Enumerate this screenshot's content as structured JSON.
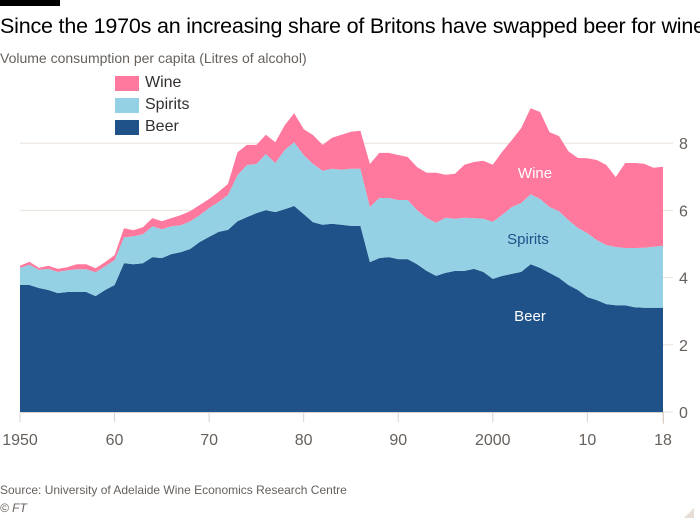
{
  "header": {
    "title": "Since the 1970s an increasing share of Britons have swapped beer for wine",
    "subtitle": "Volume consumption per capita (Litres of alcohol)"
  },
  "footer": {
    "source": "Source: University of Adelaide Wine Economics Research Centre",
    "credit": "© FT"
  },
  "colors": {
    "beer": "#1f5288",
    "spirits": "#94d1e4",
    "wine": "#ff789e",
    "grid": "#e9e2dc",
    "axis_text": "#66605c"
  },
  "chart_data": {
    "type": "area",
    "stacked": true,
    "title": "Since the 1970s an increasing share of Britons have swapped beer for wine",
    "subtitle": "Volume consumption per capita (Litres of alcohol)",
    "xlabel": "",
    "ylabel": "Litres of alcohol",
    "xlim": [
      1950,
      2018
    ],
    "ylim": [
      0,
      9
    ],
    "yticks": [
      0,
      2,
      4,
      6,
      8
    ],
    "xticks": [
      1950,
      1960,
      1970,
      1980,
      1990,
      2000,
      2010,
      2018
    ],
    "xtick_labels": [
      "1950",
      "60",
      "70",
      "80",
      "90",
      "2000",
      "10",
      "18"
    ],
    "ytick_labels": [
      "0",
      "2",
      "4",
      "6",
      "8"
    ],
    "grid": true,
    "y_axis_side": "right",
    "legend": {
      "placement": "top-left",
      "entries": [
        "Wine",
        "Spirits",
        "Beer"
      ]
    },
    "area_labels": {
      "wine": "Wine",
      "spirits": "Spirits",
      "beer": "Beer"
    },
    "x": [
      1950,
      1951,
      1952,
      1953,
      1954,
      1955,
      1956,
      1957,
      1958,
      1959,
      1960,
      1961,
      1962,
      1963,
      1964,
      1965,
      1966,
      1967,
      1968,
      1969,
      1970,
      1971,
      1972,
      1973,
      1974,
      1975,
      1976,
      1977,
      1978,
      1979,
      1980,
      1981,
      1982,
      1983,
      1984,
      1985,
      1986,
      1987,
      1988,
      1989,
      1990,
      1991,
      1992,
      1993,
      1994,
      1995,
      1996,
      1997,
      1998,
      1999,
      2000,
      2001,
      2002,
      2003,
      2004,
      2005,
      2006,
      2007,
      2008,
      2009,
      2010,
      2011,
      2012,
      2013,
      2014,
      2015,
      2016,
      2017,
      2018
    ],
    "series": [
      {
        "name": "Beer",
        "values": [
          3.78,
          3.78,
          3.69,
          3.63,
          3.54,
          3.57,
          3.57,
          3.57,
          3.45,
          3.63,
          3.78,
          4.43,
          4.4,
          4.43,
          4.61,
          4.58,
          4.7,
          4.76,
          4.85,
          5.06,
          5.21,
          5.36,
          5.42,
          5.68,
          5.8,
          5.92,
          6.01,
          5.95,
          6.04,
          6.13,
          5.89,
          5.65,
          5.57,
          5.6,
          5.57,
          5.54,
          5.54,
          4.46,
          4.58,
          4.61,
          4.55,
          4.55,
          4.4,
          4.2,
          4.05,
          4.14,
          4.2,
          4.2,
          4.26,
          4.17,
          3.96,
          4.05,
          4.11,
          4.17,
          4.4,
          4.29,
          4.14,
          3.99,
          3.78,
          3.63,
          3.42,
          3.33,
          3.21,
          3.18,
          3.18,
          3.12,
          3.1,
          3.1,
          3.1
        ]
      },
      {
        "name": "Spirits",
        "values": [
          0.51,
          0.6,
          0.54,
          0.63,
          0.63,
          0.65,
          0.68,
          0.68,
          0.71,
          0.71,
          0.74,
          0.77,
          0.83,
          0.86,
          0.92,
          0.86,
          0.83,
          0.8,
          0.83,
          0.8,
          0.86,
          0.89,
          1.04,
          1.37,
          1.55,
          1.46,
          1.67,
          1.46,
          1.76,
          1.9,
          1.76,
          1.73,
          1.61,
          1.64,
          1.64,
          1.7,
          1.7,
          1.64,
          1.79,
          1.76,
          1.76,
          1.76,
          1.61,
          1.58,
          1.58,
          1.64,
          1.55,
          1.58,
          1.51,
          1.58,
          1.7,
          1.82,
          1.99,
          2.05,
          2.08,
          2.05,
          1.96,
          1.99,
          1.93,
          1.85,
          1.9,
          1.79,
          1.76,
          1.73,
          1.7,
          1.76,
          1.79,
          1.82,
          1.85
        ]
      },
      {
        "name": "Wine",
        "values": [
          0.06,
          0.09,
          0.06,
          0.09,
          0.09,
          0.09,
          0.15,
          0.15,
          0.12,
          0.12,
          0.15,
          0.27,
          0.18,
          0.21,
          0.24,
          0.24,
          0.24,
          0.3,
          0.3,
          0.3,
          0.27,
          0.3,
          0.33,
          0.68,
          0.6,
          0.57,
          0.57,
          0.62,
          0.74,
          0.86,
          0.77,
          0.86,
          0.77,
          0.92,
          1.04,
          1.1,
          1.13,
          1.28,
          1.34,
          1.34,
          1.34,
          1.28,
          1.28,
          1.34,
          1.49,
          1.28,
          1.34,
          1.58,
          1.67,
          1.73,
          1.7,
          1.88,
          1.99,
          2.23,
          2.56,
          2.59,
          2.23,
          2.23,
          2.05,
          2.08,
          2.23,
          2.38,
          2.38,
          2.08,
          2.53,
          2.53,
          2.5,
          2.35,
          2.35
        ]
      }
    ]
  }
}
